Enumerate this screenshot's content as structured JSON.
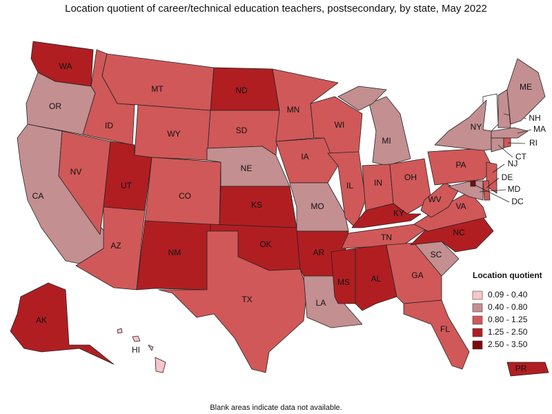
{
  "title": "Location quotient of career/technical education teachers, postsecondary, by state, May 2022",
  "legend": {
    "title": "Location quotient",
    "items": [
      {
        "label": "0.09 - 0.40",
        "color": "#f7c6c9"
      },
      {
        "label": "0.40 - 0.80",
        "color": "#c38f90"
      },
      {
        "label": "0.80 - 1.25",
        "color": "#d05858"
      },
      {
        "label": "1.25 - 2.50",
        "color": "#b01e22"
      },
      {
        "label": "2.50 - 3.50",
        "color": "#7b0a0f"
      }
    ]
  },
  "states": [
    {
      "abbr": "WA",
      "color": "#b01e22"
    },
    {
      "abbr": "OR",
      "color": "#c38f90"
    },
    {
      "abbr": "CA",
      "color": "#c38f90"
    },
    {
      "abbr": "NV",
      "color": "#d05858"
    },
    {
      "abbr": "ID",
      "color": "#d05858"
    },
    {
      "abbr": "MT",
      "color": "#d05858"
    },
    {
      "abbr": "WY",
      "color": "#d05858"
    },
    {
      "abbr": "UT",
      "color": "#b01e22"
    },
    {
      "abbr": "AZ",
      "color": "#d05858"
    },
    {
      "abbr": "CO",
      "color": "#d05858"
    },
    {
      "abbr": "NM",
      "color": "#b01e22"
    },
    {
      "abbr": "ND",
      "color": "#b01e22"
    },
    {
      "abbr": "SD",
      "color": "#d05858"
    },
    {
      "abbr": "NE",
      "color": "#c38f90"
    },
    {
      "abbr": "KS",
      "color": "#b01e22"
    },
    {
      "abbr": "OK",
      "color": "#b01e22"
    },
    {
      "abbr": "TX",
      "color": "#d05858"
    },
    {
      "abbr": "MN",
      "color": "#d05858"
    },
    {
      "abbr": "IA",
      "color": "#d05858"
    },
    {
      "abbr": "MO",
      "color": "#c38f90"
    },
    {
      "abbr": "AR",
      "color": "#b01e22"
    },
    {
      "abbr": "LA",
      "color": "#c38f90"
    },
    {
      "abbr": "WI",
      "color": "#d05858"
    },
    {
      "abbr": "IL",
      "color": "#d05858"
    },
    {
      "abbr": "MI",
      "color": "#c38f90"
    },
    {
      "abbr": "IN",
      "color": "#d05858"
    },
    {
      "abbr": "OH",
      "color": "#d05858"
    },
    {
      "abbr": "KY",
      "color": "#b01e22"
    },
    {
      "abbr": "TN",
      "color": "#d05858"
    },
    {
      "abbr": "MS",
      "color": "#b01e22"
    },
    {
      "abbr": "AL",
      "color": "#b01e22"
    },
    {
      "abbr": "GA",
      "color": "#d05858"
    },
    {
      "abbr": "FL",
      "color": "#d05858"
    },
    {
      "abbr": "SC",
      "color": "#c38f90"
    },
    {
      "abbr": "NC",
      "color": "#b01e22"
    },
    {
      "abbr": "VA",
      "color": "#d05858"
    },
    {
      "abbr": "WV",
      "color": "#d05858"
    },
    {
      "abbr": "PA",
      "color": "#d05858"
    },
    {
      "abbr": "NY",
      "color": "#c38f90"
    },
    {
      "abbr": "NH",
      "color": "#c38f90"
    },
    {
      "abbr": "ME",
      "color": "#c38f90"
    },
    {
      "abbr": "MA",
      "color": "#c38f90"
    },
    {
      "abbr": "CT",
      "color": "#c38f90"
    },
    {
      "abbr": "RI",
      "color": "#d05858"
    },
    {
      "abbr": "NJ",
      "color": "#d05858"
    },
    {
      "abbr": "DE",
      "color": "#d05858"
    },
    {
      "abbr": "MD",
      "color": "#c38f90"
    },
    {
      "abbr": "DC",
      "color": "#7b0a0f"
    },
    {
      "abbr": "AK",
      "color": "#b01e22"
    },
    {
      "abbr": "HI",
      "color": "#f7c6c9"
    },
    {
      "abbr": "PR",
      "color": "#b01e22"
    }
  ],
  "note": "Blank areas indicate data not available."
}
